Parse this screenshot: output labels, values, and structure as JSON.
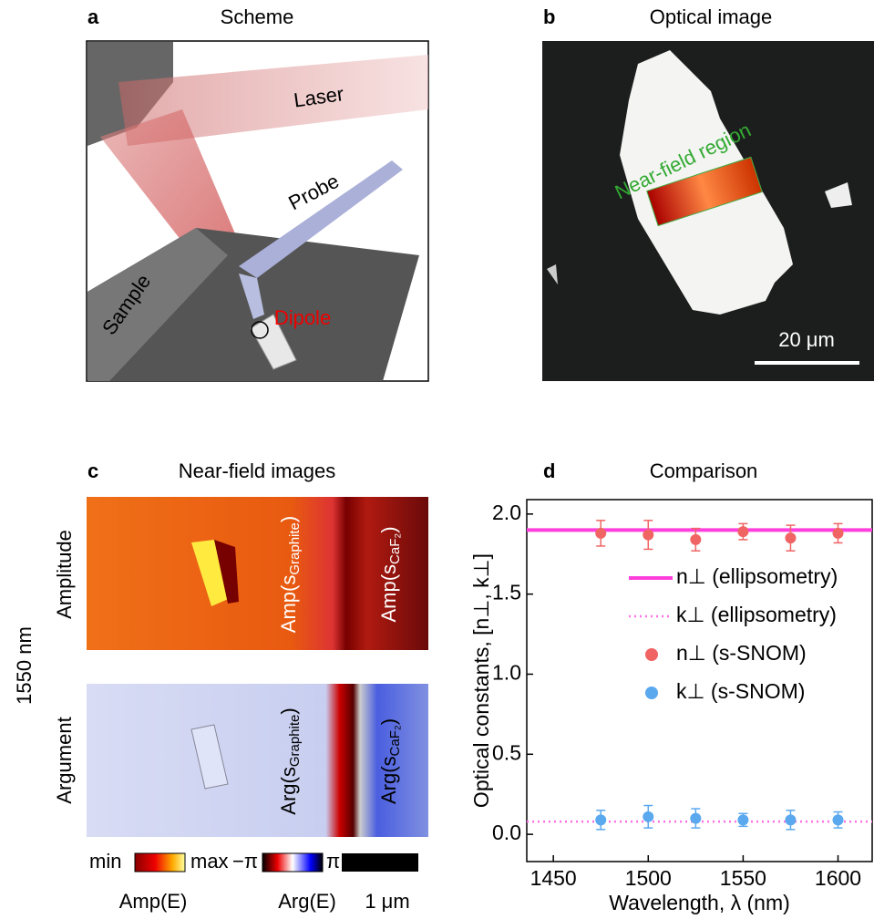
{
  "panels": {
    "a": {
      "letter": "a",
      "title": "Scheme",
      "labels": {
        "laser": "Laser",
        "probe": "Probe",
        "sample": "Sample",
        "dipole": "Dipole"
      }
    },
    "b": {
      "letter": "b",
      "title": "Optical image",
      "region": "Near-field region",
      "scale": "20 μm"
    },
    "c": {
      "letter": "c",
      "title": "Near-field images",
      "wavelength": "1550 nm",
      "rows": [
        "Amplitude",
        "Argument"
      ],
      "amp_graphite": [
        "Amp(s",
        "Graphite",
        ")"
      ],
      "amp_caf2": [
        "Amp(s",
        "CaF₂",
        ")"
      ],
      "arg_graphite": [
        "Arg(s",
        "Graphite",
        ")"
      ],
      "arg_caf2": [
        "Arg(s",
        "CaF₂",
        ")"
      ],
      "colorbar": {
        "min": "min",
        "max": "max",
        "amp": "Amp(E)",
        "neg_pi": "−π",
        "pi": "π",
        "arg": "Arg(E)",
        "scale": "1 μm"
      }
    },
    "d": {
      "letter": "d"
    }
  },
  "chart_data": {
    "type": "scatter",
    "title": "Comparison",
    "xlabel": "Wavelength, λ (nm)",
    "ylabel": "Optical constants, [n⊥, k⊥]",
    "xlim": [
      1436,
      1618
    ],
    "ylim": [
      -0.17,
      2.09
    ],
    "xticks": [
      1450,
      1500,
      1550,
      1600
    ],
    "yticks": [
      {
        "value": 0,
        "label": "0.0"
      },
      0.5,
      {
        "value": 1,
        "label": "1.0"
      },
      1.5,
      {
        "value": 2,
        "label": "2.0"
      }
    ],
    "series": [
      {
        "name": "n⊥ (ellipsometry)",
        "color": "#ff3fdc",
        "style": "solid",
        "x": [
          1436,
          1618
        ],
        "values": [
          1.9,
          1.9
        ]
      },
      {
        "name": "k⊥ (ellipsometry)",
        "color": "#ff6fe6",
        "style": "dotted",
        "x": [
          1436,
          1618
        ],
        "values": [
          0.08,
          0.08
        ]
      },
      {
        "name": "n⊥ (s-SNOM)",
        "color": "#f06464",
        "style": "points",
        "x": [
          1475,
          1500,
          1525,
          1550,
          1575,
          1600
        ],
        "values": [
          1.88,
          1.87,
          1.84,
          1.89,
          1.85,
          1.88
        ],
        "errors": [
          0.08,
          0.09,
          0.07,
          0.05,
          0.08,
          0.06
        ]
      },
      {
        "name": "k⊥ (s-SNOM)",
        "color": "#5aa8ee",
        "style": "points",
        "x": [
          1475,
          1500,
          1525,
          1550,
          1575,
          1600
        ],
        "values": [
          0.09,
          0.11,
          0.1,
          0.09,
          0.09,
          0.09
        ],
        "errors": [
          0.06,
          0.07,
          0.06,
          0.04,
          0.06,
          0.05
        ]
      }
    ]
  }
}
